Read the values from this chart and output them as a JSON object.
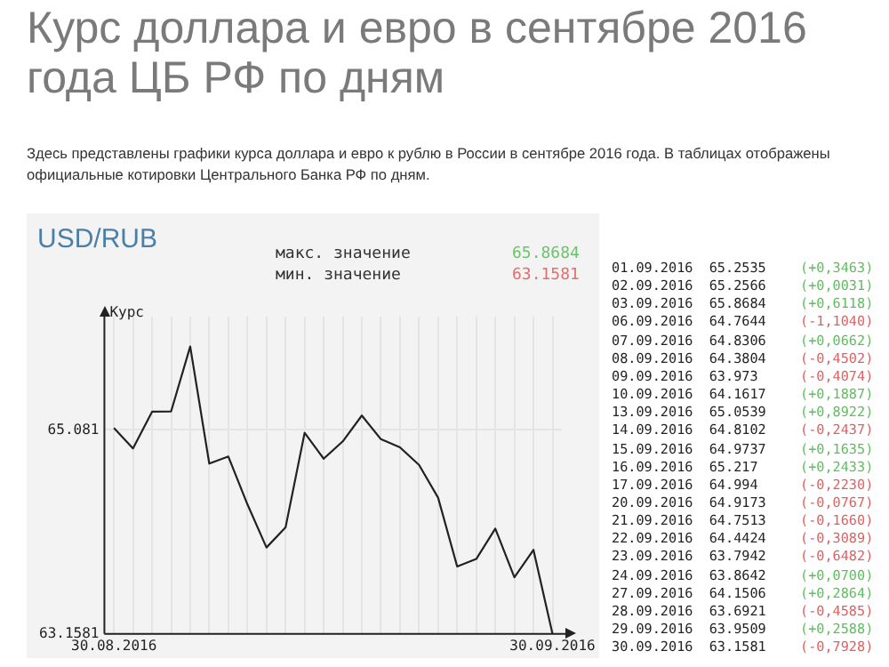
{
  "chart_data": [
    {
      "type": "line",
      "title": "Курс доллара и евро в сентябре 2016 года ЦБ РФ по дням",
      "subtitle": "Здесь представлены графики курса доллара и евро к рублю в России в сентябре 2016 года. В таблицах отображены официальные котировки Центрального Банка РФ по дням.",
      "ylabel": "Курс",
      "categories": [
        "30.08.2016",
        null,
        null,
        null,
        null,
        null,
        null,
        null,
        null,
        null,
        null,
        null,
        null,
        null,
        null,
        null,
        null,
        null,
        null,
        null,
        null,
        null,
        null,
        "30.09.2016"
      ],
      "series": [
        {
          "color": "#222222",
          "values": [
            65.1,
            64.9072,
            65.2535,
            65.2566,
            65.8684,
            64.7644,
            64.8306,
            64.3804,
            63.973,
            64.1617,
            65.0539,
            64.8102,
            64.9737,
            65.217,
            64.994,
            64.9173,
            64.7513,
            64.4424,
            63.7942,
            63.8642,
            64.1506,
            63.6921,
            63.9509,
            63.1581
          ]
        }
      ],
      "ylim": [
        63.1581,
        66.15
      ],
      "yticks": [
        63.1581,
        65.081
      ],
      "grid": true,
      "marker": "none",
      "annotations": [
        "USD/RUB",
        "макс. значение",
        "мин. значение",
        "65.8684",
        "63.1581"
      ]
    },
    {
      "type": "other",
      "annotations": [
        "01.09.2016  65.2535",
        "(+0,3463)",
        "02.09.2016  65.2566",
        "(+0,0031)",
        "03.09.2016  65.8684",
        "(+0,6118)",
        "06.09.2016  64.7644",
        "(-1,1040)",
        "07.09.2016  64.8306",
        "(+0,0662)",
        "08.09.2016  64.3804",
        "(-0,4502)",
        "09.09.2016  63.973",
        "(-0,4074)",
        "10.09.2016  64.1617",
        "(+0,1887)",
        "13.09.2016  65.0539",
        "(+0,8922)",
        "14.09.2016  64.8102",
        "(-0,2437)",
        "15.09.2016  64.9737",
        "(+0,1635)",
        "16.09.2016  65.217",
        "(+0,2433)",
        "17.09.2016  64.994",
        "(-0,2230)",
        "20.09.2016  64.9173",
        "(-0,0767)",
        "21.09.2016  64.7513",
        "(-0,1660)",
        "22.09.2016  64.4424",
        "(-0,3089)",
        "23.09.2016  63.7942",
        "(-0,6482)",
        "24.09.2016  63.8642",
        "(+0,0700)",
        "27.09.2016  64.1506",
        "(+0,2864)",
        "28.09.2016  63.6921",
        "(-0,4585)",
        "29.09.2016  63.9509",
        "(+0,2588)",
        "30.09.2016  63.1581",
        "(-0,7928)"
      ],
      "colors": [
        "#5cbf5c",
        "#5cbf5c",
        "#5cbf5c",
        "#e06060",
        "#5cbf5c",
        "#e06060",
        "#e06060",
        "#5cbf5c",
        "#5cbf5c",
        "#e06060",
        "#5cbf5c",
        "#5cbf5c",
        "#e06060",
        "#e06060",
        "#e06060",
        "#e06060",
        "#e06060",
        "#5cbf5c",
        "#5cbf5c",
        "#e06060",
        "#5cbf5c",
        "#e06060"
      ]
    }
  ]
}
